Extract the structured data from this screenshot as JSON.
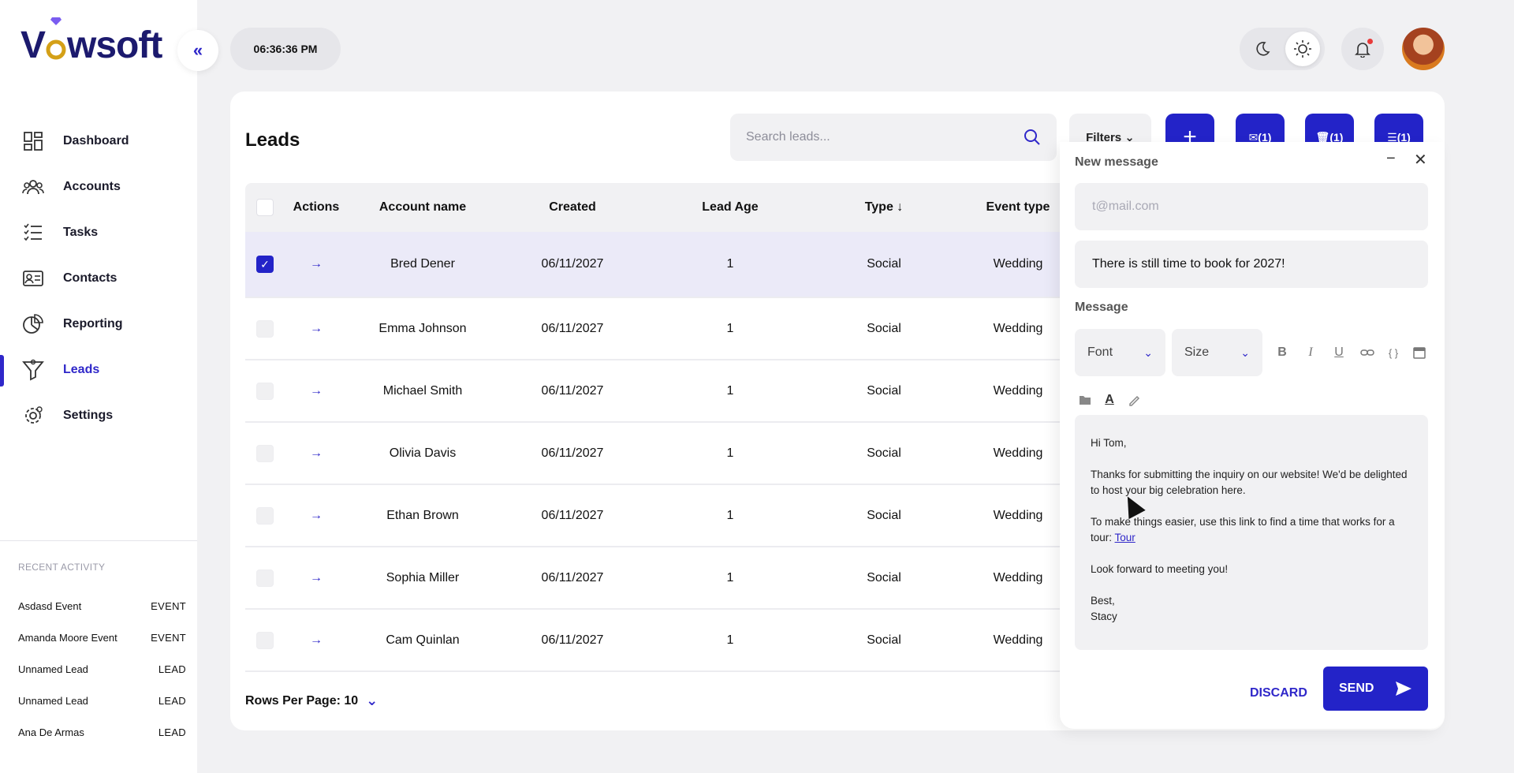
{
  "brand": {
    "name_pre": "V",
    "name_post": "wsoft",
    "ring_color": "#d4a017",
    "gem_color": "#7a5cf0"
  },
  "colors": {
    "accent": "#2323c8",
    "brand_text": "#1c1a6e"
  },
  "clock": "06:36:36 PM",
  "nav": [
    {
      "label": "Dashboard",
      "icon": "dashboard-icon"
    },
    {
      "label": "Accounts",
      "icon": "accounts-icon"
    },
    {
      "label": "Tasks",
      "icon": "tasks-icon"
    },
    {
      "label": "Contacts",
      "icon": "contacts-icon"
    },
    {
      "label": "Reporting",
      "icon": "reporting-icon"
    },
    {
      "label": "Leads",
      "icon": "funnel-icon",
      "active": true
    },
    {
      "label": "Settings",
      "icon": "settings-icon"
    }
  ],
  "recent": {
    "title": "RECENT ACTIVITY",
    "items": [
      {
        "name": "Asdasd Event",
        "tag": "EVENT"
      },
      {
        "name": "Amanda Moore Event",
        "tag": "EVENT"
      },
      {
        "name": "Unnamed Lead",
        "tag": "LEAD"
      },
      {
        "name": "Unnamed Lead",
        "tag": "LEAD"
      },
      {
        "name": "Ana De Armas",
        "tag": "LEAD"
      }
    ]
  },
  "leads": {
    "title": "Leads",
    "search_placeholder": "Search leads...",
    "filters_label": "Filters",
    "email_count": "(1)",
    "delete_count": "(1)",
    "sort_count": "(1)",
    "columns": {
      "actions": "Actions",
      "account": "Account name",
      "created": "Created",
      "age": "Lead Age",
      "type": "Type ↓",
      "event": "Event type"
    },
    "arrow": "→",
    "rows": [
      {
        "name": "Bred Dener",
        "created": "06/11/2027",
        "age": "1",
        "type": "Social",
        "event": "Wedding",
        "checked": true
      },
      {
        "name": "Emma Johnson",
        "created": "06/11/2027",
        "age": "1",
        "type": "Social",
        "event": "Wedding"
      },
      {
        "name": "Michael Smith",
        "created": "06/11/2027",
        "age": "1",
        "type": "Social",
        "event": "Wedding"
      },
      {
        "name": "Olivia Davis",
        "created": "06/11/2027",
        "age": "1",
        "type": "Social",
        "event": "Wedding"
      },
      {
        "name": "Ethan Brown",
        "created": "06/11/2027",
        "age": "1",
        "type": "Social",
        "event": "Wedding"
      },
      {
        "name": "Sophia Miller",
        "created": "06/11/2027",
        "age": "1",
        "type": "Social",
        "event": "Wedding"
      },
      {
        "name": "Cam Quinlan",
        "created": "06/11/2027",
        "age": "1",
        "type": "Social",
        "event": "Wedding"
      }
    ],
    "rows_per_page": "Rows Per Page: 10"
  },
  "composer": {
    "title": "New message",
    "to_placeholder": "t@mail.com",
    "subject": "There is still time to book for 2027!",
    "message_label": "Message",
    "font_label": "Font",
    "size_label": "Size",
    "body": {
      "greeting": "Hi Tom,",
      "p1": "Thanks for submitting the inquiry on our website! We'd be delighted to host your big celebration here.",
      "p2": "To make things easier, use this link to find a time that works for a tour:",
      "link": "Tour",
      "p3": "Look forward to meeting you!",
      "signoff": "Best,",
      "signature": "Stacy"
    },
    "discard_label": "DISCARD",
    "send_label": "SEND"
  }
}
